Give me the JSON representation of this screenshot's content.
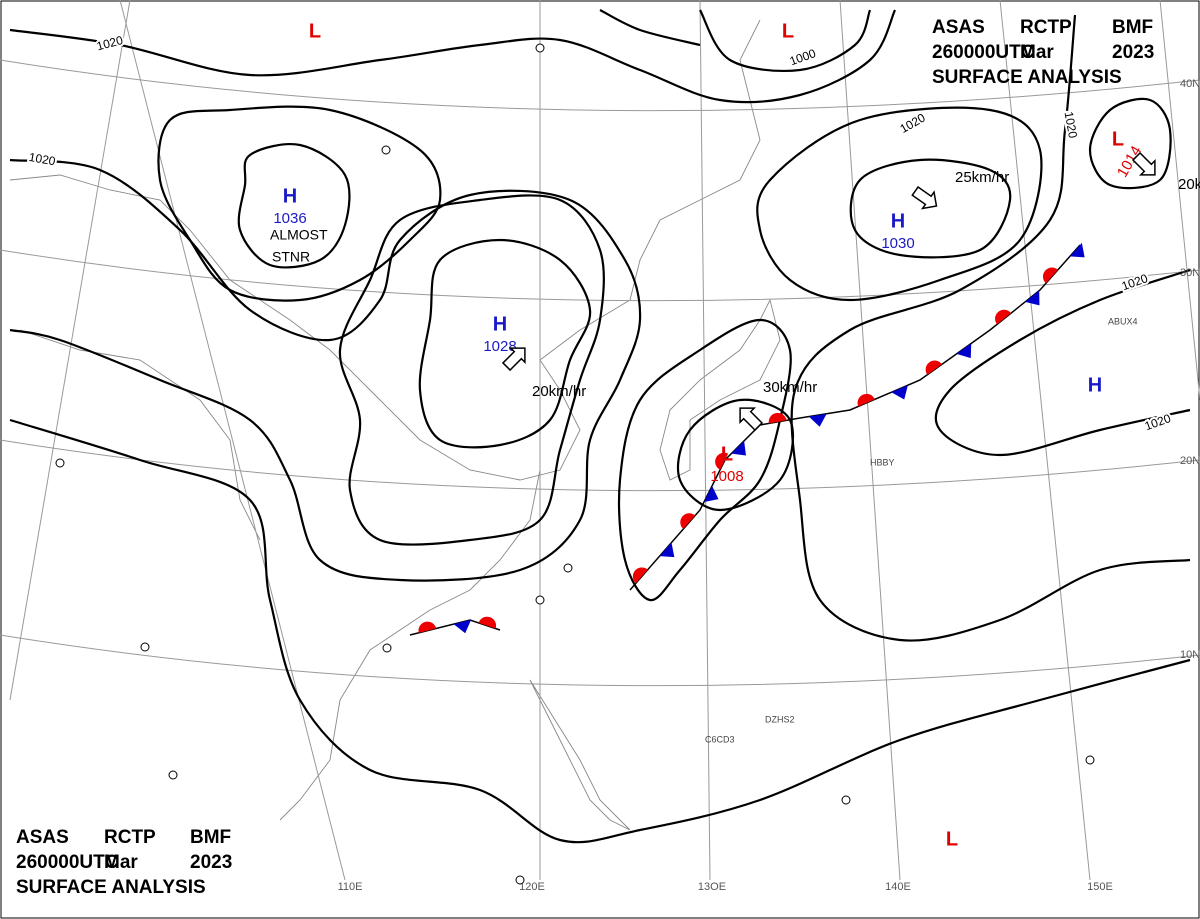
{
  "header_top": {
    "lines": [
      [
        "ASAS",
        "RCTP",
        "BMF"
      ],
      [
        "260000UTC",
        "Mar",
        "2023"
      ],
      [
        "SURFACE ANALYSIS"
      ]
    ]
  },
  "header_bottom": {
    "lines": [
      [
        "ASAS",
        "RCTP",
        "BMF"
      ],
      [
        "260000UTC",
        "Mar",
        "2023"
      ],
      [
        "SURFACE ANALYSIS"
      ]
    ]
  },
  "centers": [
    {
      "symbol": "H",
      "pressure": 1036
    },
    {
      "symbol": "H",
      "pressure": 1028
    },
    {
      "symbol": "H",
      "pressure": 1030
    },
    {
      "symbol": "L",
      "pressure": 1008
    },
    {
      "symbol": "L",
      "pressure": 1014
    },
    {
      "symbol": "H"
    },
    {
      "symbol": "L"
    },
    {
      "symbol": "L"
    },
    {
      "symbol": "L"
    }
  ],
  "isobar_labels": [
    1020,
    1020,
    1000,
    1020,
    1020,
    1020,
    1020
  ],
  "motion": [
    "25km/hr",
    "20km/hr",
    "30km/hr",
    "20k"
  ],
  "notes": [
    "ALMOST",
    "STNR"
  ],
  "latitudes": [
    "40N",
    "30N",
    "20N",
    "10N"
  ],
  "longitudes": [
    "110E",
    "120E",
    "13OE",
    "140E",
    "150E"
  ],
  "stations": [
    "ABUX4",
    "HBBY",
    "C6CD3",
    "DZHS2"
  ]
}
